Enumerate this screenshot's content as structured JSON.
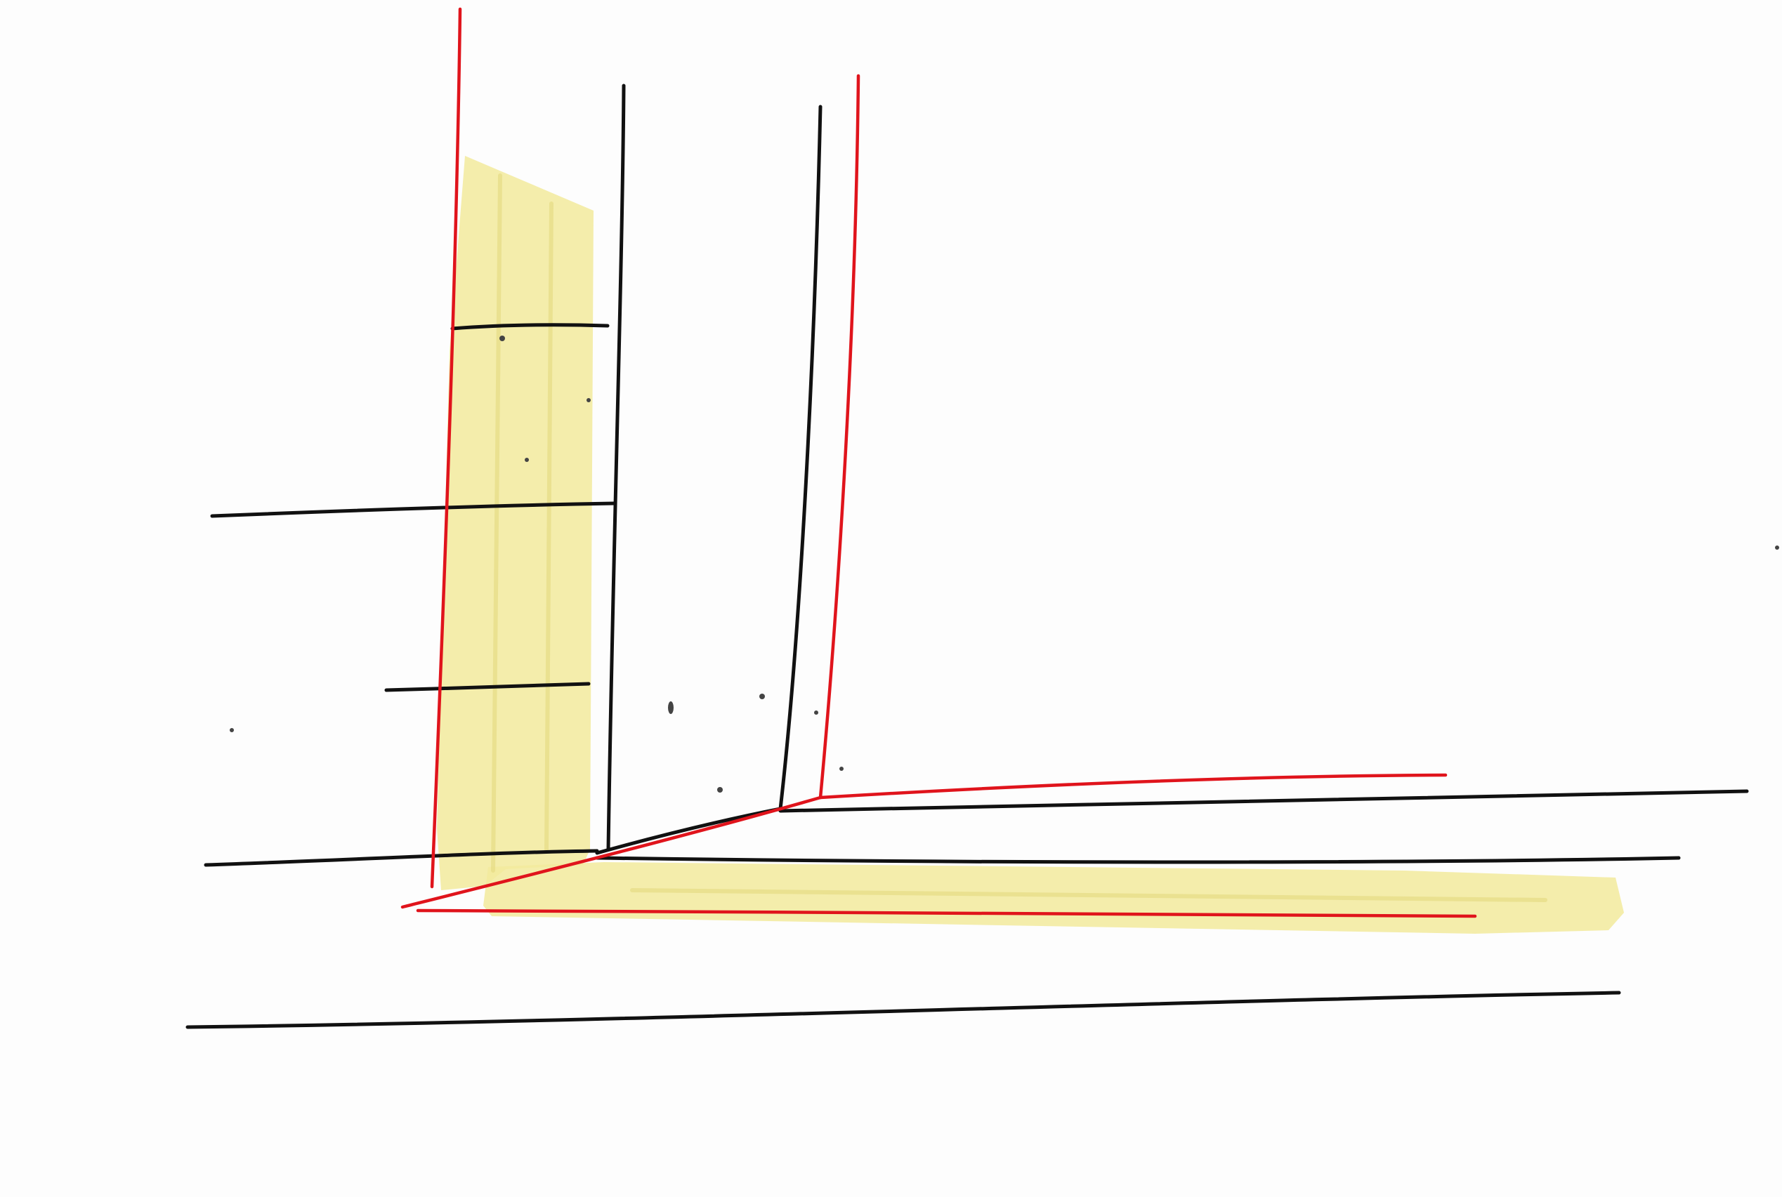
{
  "sketch": {
    "colors": {
      "paper": "#fdfdfd",
      "black_ink": "#111111",
      "red_ink": "#e0141c",
      "highlighter": "#f2ea9c",
      "highlighter_streak": "#e6dc84",
      "speck": "#444444"
    }
  }
}
